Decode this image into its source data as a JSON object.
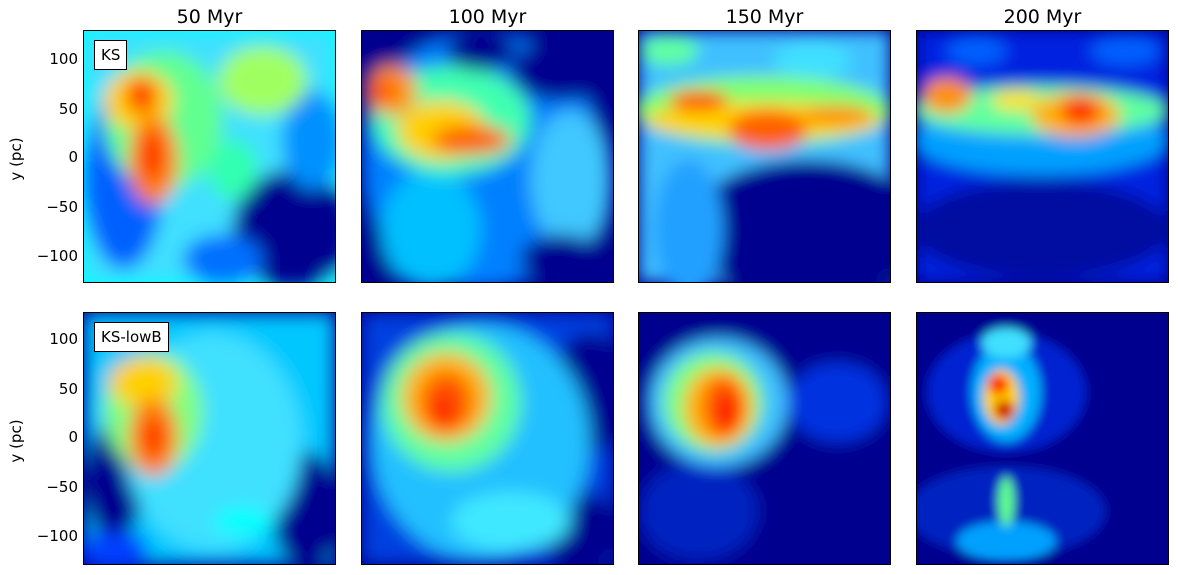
{
  "columns": [
    "50 Myr",
    "100 Myr",
    "150 Myr",
    "200 Myr"
  ],
  "rows": [
    {
      "label": "KS",
      "ylabel": "y (pc)"
    },
    {
      "label": "KS-lowB",
      "ylabel": "y (pc)"
    }
  ],
  "y_ticks": [
    "100",
    "50",
    "0",
    "−50",
    "−100"
  ],
  "colormap": [
    "#00008f",
    "#0000ff",
    "#0080ff",
    "#00ffff",
    "#80ff80",
    "#ffff00",
    "#ff8000",
    "#ff0000",
    "#800000"
  ]
}
